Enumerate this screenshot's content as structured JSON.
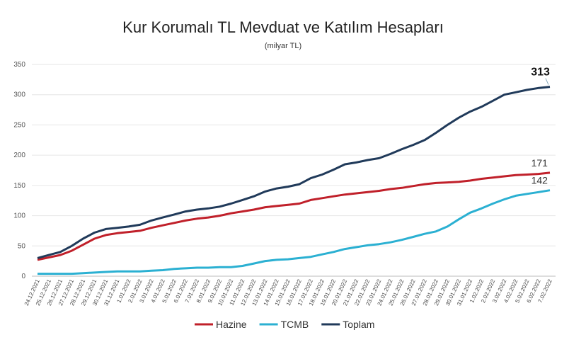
{
  "chart_data": {
    "type": "line",
    "title": "Kur Korumalı TL Mevduat ve Katılım Hesapları",
    "subtitle": "(milyar TL)",
    "categories": [
      "24.12.2021",
      "25.12.2021",
      "26.12.2021",
      "27.12.2021",
      "28.12.2021",
      "29.12.2021",
      "30.12.2021",
      "31.12.2021",
      "1.01.2022",
      "2.01.2022",
      "3.01.2022",
      "4.01.2022",
      "5.01.2022",
      "6.01.2022",
      "7.01.2022",
      "8.01.2022",
      "9.01.2022",
      "10.01.2022",
      "11.01.2022",
      "12.01.2022",
      "13.01.2022",
      "14.01.2022",
      "15.01.2022",
      "16.01.2022",
      "17.01.2022",
      "18.01.2022",
      "19.01.2022",
      "20.01.2022",
      "21.01.2022",
      "22.01.2022",
      "23.01.2022",
      "24.01.2022",
      "25.01.2022",
      "26.01.2022",
      "27.01.2022",
      "28.01.2022",
      "29.01.2022",
      "30.01.2022",
      "31.01.2022",
      "1.02.2022",
      "2.02.2022",
      "3.02.2022",
      "4.02.2022",
      "5.02.2022",
      "6.02.2022",
      "7.02.2022"
    ],
    "series": [
      {
        "name": "Hazine",
        "color": "#c0202a",
        "values": [
          27,
          31,
          35,
          42,
          52,
          62,
          68,
          71,
          73,
          75,
          80,
          84,
          88,
          92,
          95,
          97,
          100,
          104,
          107,
          110,
          114,
          116,
          118,
          120,
          126,
          129,
          132,
          135,
          137,
          139,
          141,
          144,
          146,
          149,
          152,
          154,
          155,
          156,
          158,
          161,
          163,
          165,
          167,
          168,
          169,
          171
        ]
      },
      {
        "name": "TCMB",
        "color": "#2bb0d2",
        "values": [
          4,
          4,
          4,
          4,
          5,
          6,
          7,
          8,
          8,
          8,
          9,
          10,
          12,
          13,
          14,
          14,
          15,
          15,
          17,
          21,
          25,
          27,
          28,
          30,
          32,
          36,
          40,
          45,
          48,
          51,
          53,
          56,
          60,
          65,
          70,
          74,
          82,
          94,
          105,
          112,
          120,
          127,
          133,
          136,
          139,
          142
        ]
      },
      {
        "name": "Toplam",
        "color": "#203a5a",
        "values": [
          30,
          35,
          40,
          50,
          62,
          72,
          78,
          80,
          82,
          85,
          92,
          97,
          102,
          107,
          110,
          112,
          115,
          120,
          126,
          132,
          140,
          145,
          148,
          152,
          162,
          168,
          176,
          185,
          188,
          192,
          195,
          202,
          210,
          217,
          225,
          237,
          250,
          262,
          272,
          280,
          290,
          300,
          304,
          308,
          311,
          313
        ]
      }
    ],
    "ylim": [
      0,
      350
    ],
    "yticks": [
      0,
      50,
      100,
      150,
      200,
      250,
      300,
      350
    ],
    "grid": true,
    "legend": "bottom"
  }
}
